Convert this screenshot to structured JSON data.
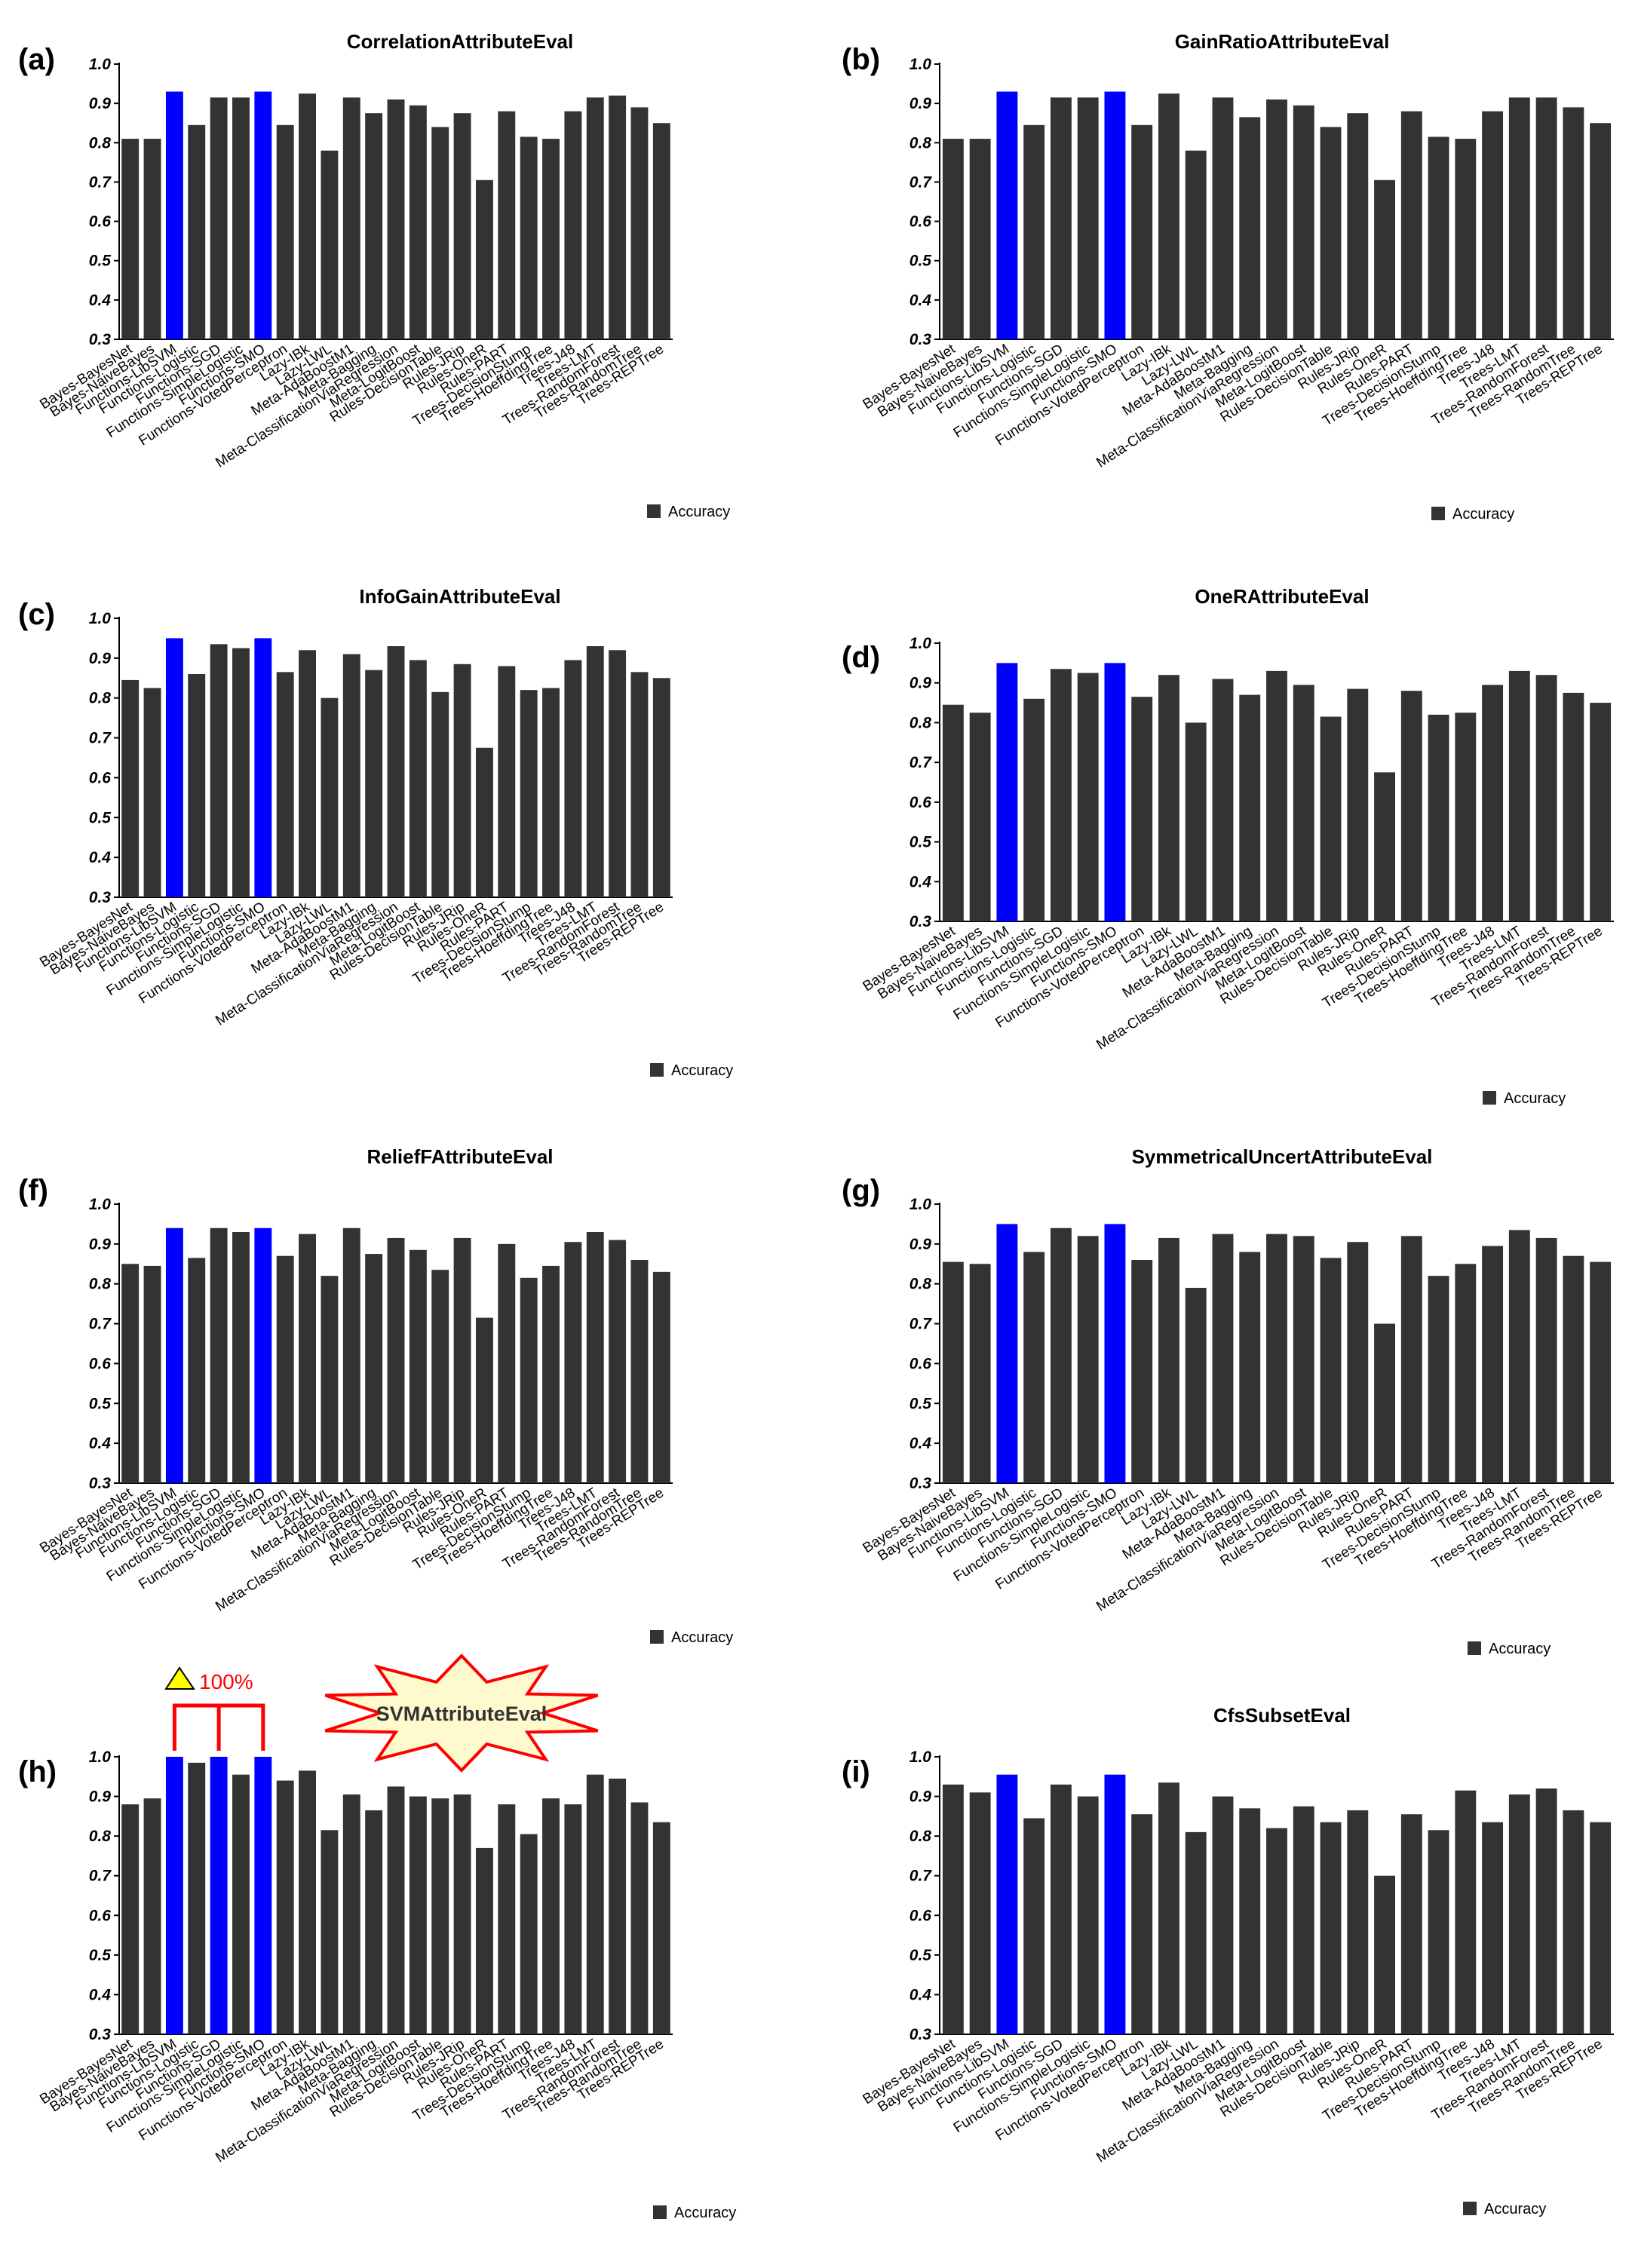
{
  "figure": {
    "categories": [
      "Bayes-BayesNet",
      "Bayes-NaiveBayes",
      "Functions-LibSVM",
      "Functions-Logistic",
      "Functions-SGD",
      "Functions-SimpleLogistic",
      "Functions-SMO",
      "Functions-VotedPerceptron",
      "Lazy-IBk",
      "Lazy-LWL",
      "Meta-AdaBoostM1",
      "Meta-Bagging",
      "Meta-ClassificationViaRegression",
      "Meta-LogitBoost",
      "Rules-DecisionTable",
      "Rules-JRip",
      "Rules-OneR",
      "Rules-PART",
      "Trees-DecisionStump",
      "Trees-HoeffdingTree",
      "Trees-J48",
      "Trees-LMT",
      "Trees-RandomForest",
      "Trees-RandomTree",
      "Trees-REPTree"
    ],
    "legend_label": "Accuracy",
    "y_ticks": [
      "0.3",
      "0.4",
      "0.5",
      "0.6",
      "0.7",
      "0.8",
      "0.9",
      "1.0"
    ],
    "colors": {
      "bar": "#333333",
      "highlight": "#0000ff",
      "star_fill": "#fffacd",
      "star_stroke": "#ff0000",
      "bracket": "#ff0000",
      "triangle": "#ffff00"
    },
    "annotation": {
      "percent_label": "100%",
      "star_label": "SVMAttributeEval"
    }
  },
  "chart_data": [
    {
      "type": "bar",
      "panel_label": "(a)",
      "title": "CorrelationAttributeEval",
      "ylim": [
        0.3,
        1.0
      ],
      "xlabel": "",
      "ylabel": "",
      "legend": "bottom-right",
      "highlight": [
        "Functions-LibSVM",
        "Functions-SMO"
      ],
      "series": [
        {
          "name": "Accuracy",
          "values": [
            0.81,
            0.81,
            0.93,
            0.845,
            0.915,
            0.915,
            0.93,
            0.845,
            0.925,
            0.78,
            0.915,
            0.875,
            0.91,
            0.895,
            0.84,
            0.875,
            0.705,
            0.88,
            0.815,
            0.81,
            0.88,
            0.915,
            0.92,
            0.89,
            0.85
          ]
        }
      ]
    },
    {
      "type": "bar",
      "panel_label": "(b)",
      "title": "GainRatioAttributeEval",
      "ylim": [
        0.3,
        1.0
      ],
      "xlabel": "",
      "ylabel": "",
      "legend": "bottom-right",
      "highlight": [
        "Functions-LibSVM",
        "Functions-SMO"
      ],
      "series": [
        {
          "name": "Accuracy",
          "values": [
            0.81,
            0.81,
            0.93,
            0.845,
            0.915,
            0.915,
            0.93,
            0.845,
            0.925,
            0.78,
            0.915,
            0.865,
            0.91,
            0.895,
            0.84,
            0.875,
            0.705,
            0.88,
            0.815,
            0.81,
            0.88,
            0.915,
            0.915,
            0.89,
            0.85
          ]
        }
      ]
    },
    {
      "type": "bar",
      "panel_label": "(c)",
      "title": "InfoGainAttributeEval",
      "ylim": [
        0.3,
        1.0
      ],
      "xlabel": "",
      "ylabel": "",
      "legend": "bottom-right",
      "highlight": [
        "Functions-LibSVM",
        "Functions-SMO"
      ],
      "series": [
        {
          "name": "Accuracy",
          "values": [
            0.845,
            0.825,
            0.95,
            0.86,
            0.935,
            0.925,
            0.95,
            0.865,
            0.92,
            0.8,
            0.91,
            0.87,
            0.93,
            0.895,
            0.815,
            0.885,
            0.675,
            0.88,
            0.82,
            0.825,
            0.895,
            0.93,
            0.92,
            0.865,
            0.85
          ]
        }
      ]
    },
    {
      "type": "bar",
      "panel_label": "(d)",
      "title": "OneRAttributeEval",
      "ylim": [
        0.3,
        1.0
      ],
      "xlabel": "",
      "ylabel": "",
      "legend": "bottom-right",
      "highlight": [
        "Functions-LibSVM",
        "Functions-SMO"
      ],
      "series": [
        {
          "name": "Accuracy",
          "values": [
            0.845,
            0.825,
            0.95,
            0.86,
            0.935,
            0.925,
            0.95,
            0.865,
            0.92,
            0.8,
            0.91,
            0.87,
            0.93,
            0.895,
            0.815,
            0.885,
            0.675,
            0.88,
            0.82,
            0.825,
            0.895,
            0.93,
            0.92,
            0.875,
            0.85
          ]
        }
      ]
    },
    {
      "type": "bar",
      "panel_label": "(f)",
      "title": "ReliefFAttributeEval",
      "ylim": [
        0.3,
        1.0
      ],
      "xlabel": "",
      "ylabel": "",
      "legend": "bottom-right",
      "highlight": [
        "Functions-LibSVM",
        "Functions-SMO"
      ],
      "series": [
        {
          "name": "Accuracy",
          "values": [
            0.85,
            0.845,
            0.94,
            0.865,
            0.94,
            0.93,
            0.94,
            0.87,
            0.925,
            0.82,
            0.94,
            0.875,
            0.915,
            0.885,
            0.835,
            0.915,
            0.715,
            0.9,
            0.815,
            0.845,
            0.905,
            0.93,
            0.91,
            0.86,
            0.83
          ]
        }
      ]
    },
    {
      "type": "bar",
      "panel_label": "(g)",
      "title": "SymmetricalUncertAttributeEval",
      "ylim": [
        0.3,
        1.0
      ],
      "xlabel": "",
      "ylabel": "",
      "legend": "bottom-right",
      "highlight": [
        "Functions-LibSVM",
        "Functions-SMO"
      ],
      "series": [
        {
          "name": "Accuracy",
          "values": [
            0.855,
            0.85,
            0.95,
            0.88,
            0.94,
            0.92,
            0.95,
            0.86,
            0.915,
            0.79,
            0.925,
            0.88,
            0.925,
            0.92,
            0.865,
            0.905,
            0.7,
            0.92,
            0.82,
            0.85,
            0.895,
            0.935,
            0.915,
            0.87,
            0.855
          ]
        }
      ]
    },
    {
      "type": "bar",
      "panel_label": "(h)",
      "title": "",
      "ylim": [
        0.3,
        1.0
      ],
      "xlabel": "",
      "ylabel": "",
      "legend": "bottom-right",
      "highlight": [
        "Functions-LibSVM",
        "Functions-SGD",
        "Functions-SMO"
      ],
      "series": [
        {
          "name": "Accuracy",
          "values": [
            0.88,
            0.895,
            1.0,
            0.985,
            1.0,
            0.955,
            1.0,
            0.94,
            0.965,
            0.815,
            0.905,
            0.865,
            0.925,
            0.9,
            0.895,
            0.905,
            0.77,
            0.88,
            0.805,
            0.895,
            0.88,
            0.955,
            0.945,
            0.885,
            0.835
          ]
        }
      ]
    },
    {
      "type": "bar",
      "panel_label": "(i)",
      "title": "CfsSubsetEval",
      "ylim": [
        0.3,
        1.0
      ],
      "xlabel": "",
      "ylabel": "",
      "legend": "bottom-right",
      "highlight": [
        "Functions-LibSVM",
        "Functions-SMO"
      ],
      "series": [
        {
          "name": "Accuracy",
          "values": [
            0.93,
            0.91,
            0.955,
            0.845,
            0.93,
            0.9,
            0.955,
            0.855,
            0.935,
            0.81,
            0.9,
            0.87,
            0.82,
            0.875,
            0.835,
            0.865,
            0.7,
            0.855,
            0.815,
            0.915,
            0.835,
            0.905,
            0.92,
            0.865,
            0.835
          ]
        }
      ]
    }
  ]
}
